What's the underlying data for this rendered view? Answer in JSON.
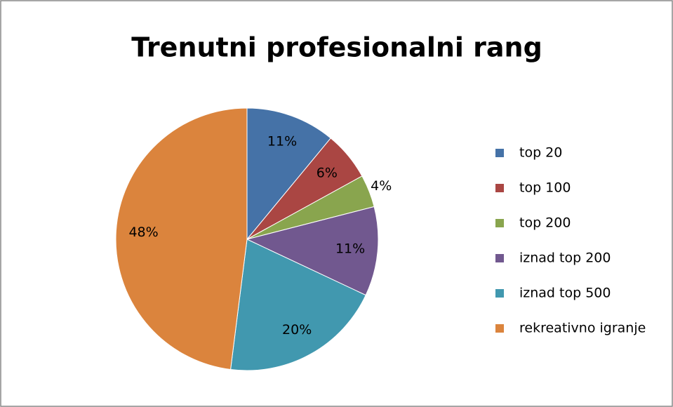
{
  "chart_data": {
    "type": "pie",
    "title": "Trenutni profesionalni rang",
    "categories": [
      "top 20",
      "top 100",
      "top 200",
      "iznad top 200",
      "iznad top 500",
      "rekreativno igranje"
    ],
    "values": [
      11,
      6,
      4,
      11,
      20,
      48
    ],
    "value_labels": [
      "11%",
      "6%",
      "4%",
      "11%",
      "20%",
      "48%"
    ],
    "colors": [
      "#4572A7",
      "#AA4643",
      "#89A54E",
      "#71588F",
      "#4198AF",
      "#DB843D"
    ],
    "legend": "right"
  }
}
